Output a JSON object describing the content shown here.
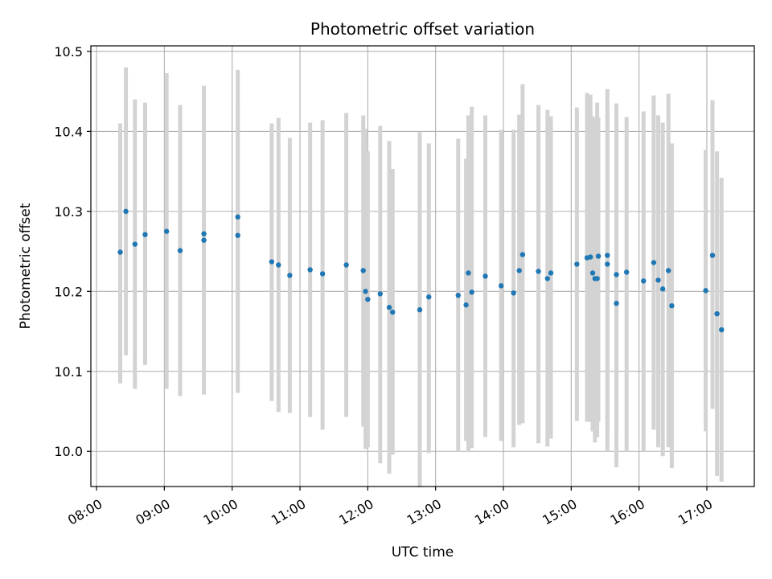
{
  "chart_data": {
    "type": "scatter",
    "title": "Photometric offset variation",
    "xlabel": "UTC time",
    "ylabel": "Photometric offset",
    "x_tick_labels": [
      "08:00",
      "09:00",
      "10:00",
      "11:00",
      "12:00",
      "13:00",
      "14:00",
      "15:00",
      "16:00",
      "17:00"
    ],
    "y_tick_labels": [
      "10.0",
      "10.1",
      "10.2",
      "10.3",
      "10.4",
      "10.5"
    ],
    "y_ticks": [
      10.0,
      10.1,
      10.2,
      10.3,
      10.4,
      10.5
    ],
    "xlim": [
      "07:55",
      "17:42"
    ],
    "ylim": [
      9.956,
      10.507
    ],
    "grid": true,
    "colors": {
      "point": "#1f77b4",
      "errorbar": "#d3d3d3",
      "grid": "#b0b0b0"
    },
    "series": [
      {
        "x": [
          "08:21",
          "08:26",
          "08:34",
          "08:43",
          "09:02",
          "09:14",
          "09:35",
          "09:35",
          "10:05",
          "10:05",
          "10:35",
          "10:41",
          "10:51",
          "11:09",
          "11:20",
          "11:41",
          "11:56",
          "11:58",
          "12:00",
          "12:11",
          "12:19",
          "12:22",
          "12:46",
          "12:54",
          "13:20",
          "13:27",
          "13:29",
          "13:32",
          "13:44",
          "13:58",
          "14:09",
          "14:14",
          "14:17",
          "14:31",
          "14:39",
          "14:42",
          "15:05",
          "15:14",
          "15:17",
          "15:19",
          "15:21",
          "15:23",
          "15:24",
          "15:32",
          "15:32",
          "15:40",
          "15:40",
          "15:49",
          "16:04",
          "16:13",
          "16:17",
          "16:21",
          "16:26",
          "16:29",
          "16:59",
          "17:05",
          "17:09",
          "17:13"
        ],
        "y": [
          10.249,
          10.3,
          10.259,
          10.271,
          10.275,
          10.251,
          10.272,
          10.264,
          10.293,
          10.27,
          10.237,
          10.233,
          10.22,
          10.227,
          10.222,
          10.233,
          10.226,
          10.2,
          10.19,
          10.197,
          10.18,
          10.174,
          10.177,
          10.193,
          10.195,
          10.183,
          10.223,
          10.199,
          10.219,
          10.207,
          10.198,
          10.226,
          10.246,
          10.225,
          10.216,
          10.223,
          10.234,
          10.242,
          10.243,
          10.223,
          10.216,
          10.216,
          10.244,
          10.234,
          10.245,
          10.185,
          10.221,
          10.224,
          10.213,
          10.236,
          10.214,
          10.203,
          10.226,
          10.182,
          10.201,
          10.245,
          10.172,
          10.152
        ],
        "ylow": [
          10.085,
          10.12,
          10.078,
          10.108,
          10.078,
          10.069,
          10.072,
          10.071,
          10.073,
          10.11,
          10.063,
          10.049,
          10.048,
          10.043,
          10.027,
          10.043,
          10.031,
          10.003,
          10.005,
          9.985,
          9.972,
          9.996,
          9.955,
          9.998,
          10.0,
          10.013,
          9.999,
          10.004,
          10.018,
          10.013,
          10.005,
          10.033,
          10.035,
          10.01,
          10.006,
          10.016,
          10.038,
          10.037,
          10.037,
          10.025,
          10.011,
          10.018,
          10.037,
          10.0,
          10.027,
          9.98,
          10.024,
          10.0,
          10.0,
          10.027,
          10.005,
          9.994,
          10.005,
          9.979,
          10.025,
          10.053,
          9.969,
          9.962
        ],
        "yhigh": [
          10.41,
          10.48,
          10.44,
          10.436,
          10.473,
          10.433,
          10.448,
          10.457,
          10.477,
          10.435,
          10.41,
          10.417,
          10.392,
          10.411,
          10.414,
          10.423,
          10.42,
          10.403,
          10.375,
          10.407,
          10.388,
          10.353,
          10.399,
          10.385,
          10.391,
          10.366,
          10.42,
          10.431,
          10.42,
          10.402,
          10.402,
          10.421,
          10.459,
          10.433,
          10.427,
          10.419,
          10.43,
          10.448,
          10.446,
          10.419,
          10.416,
          10.436,
          10.417,
          10.423,
          10.453,
          10.435,
          10.413,
          10.418,
          10.425,
          10.445,
          10.42,
          10.411,
          10.447,
          10.385,
          10.377,
          10.439,
          10.375,
          10.342
        ]
      }
    ]
  }
}
